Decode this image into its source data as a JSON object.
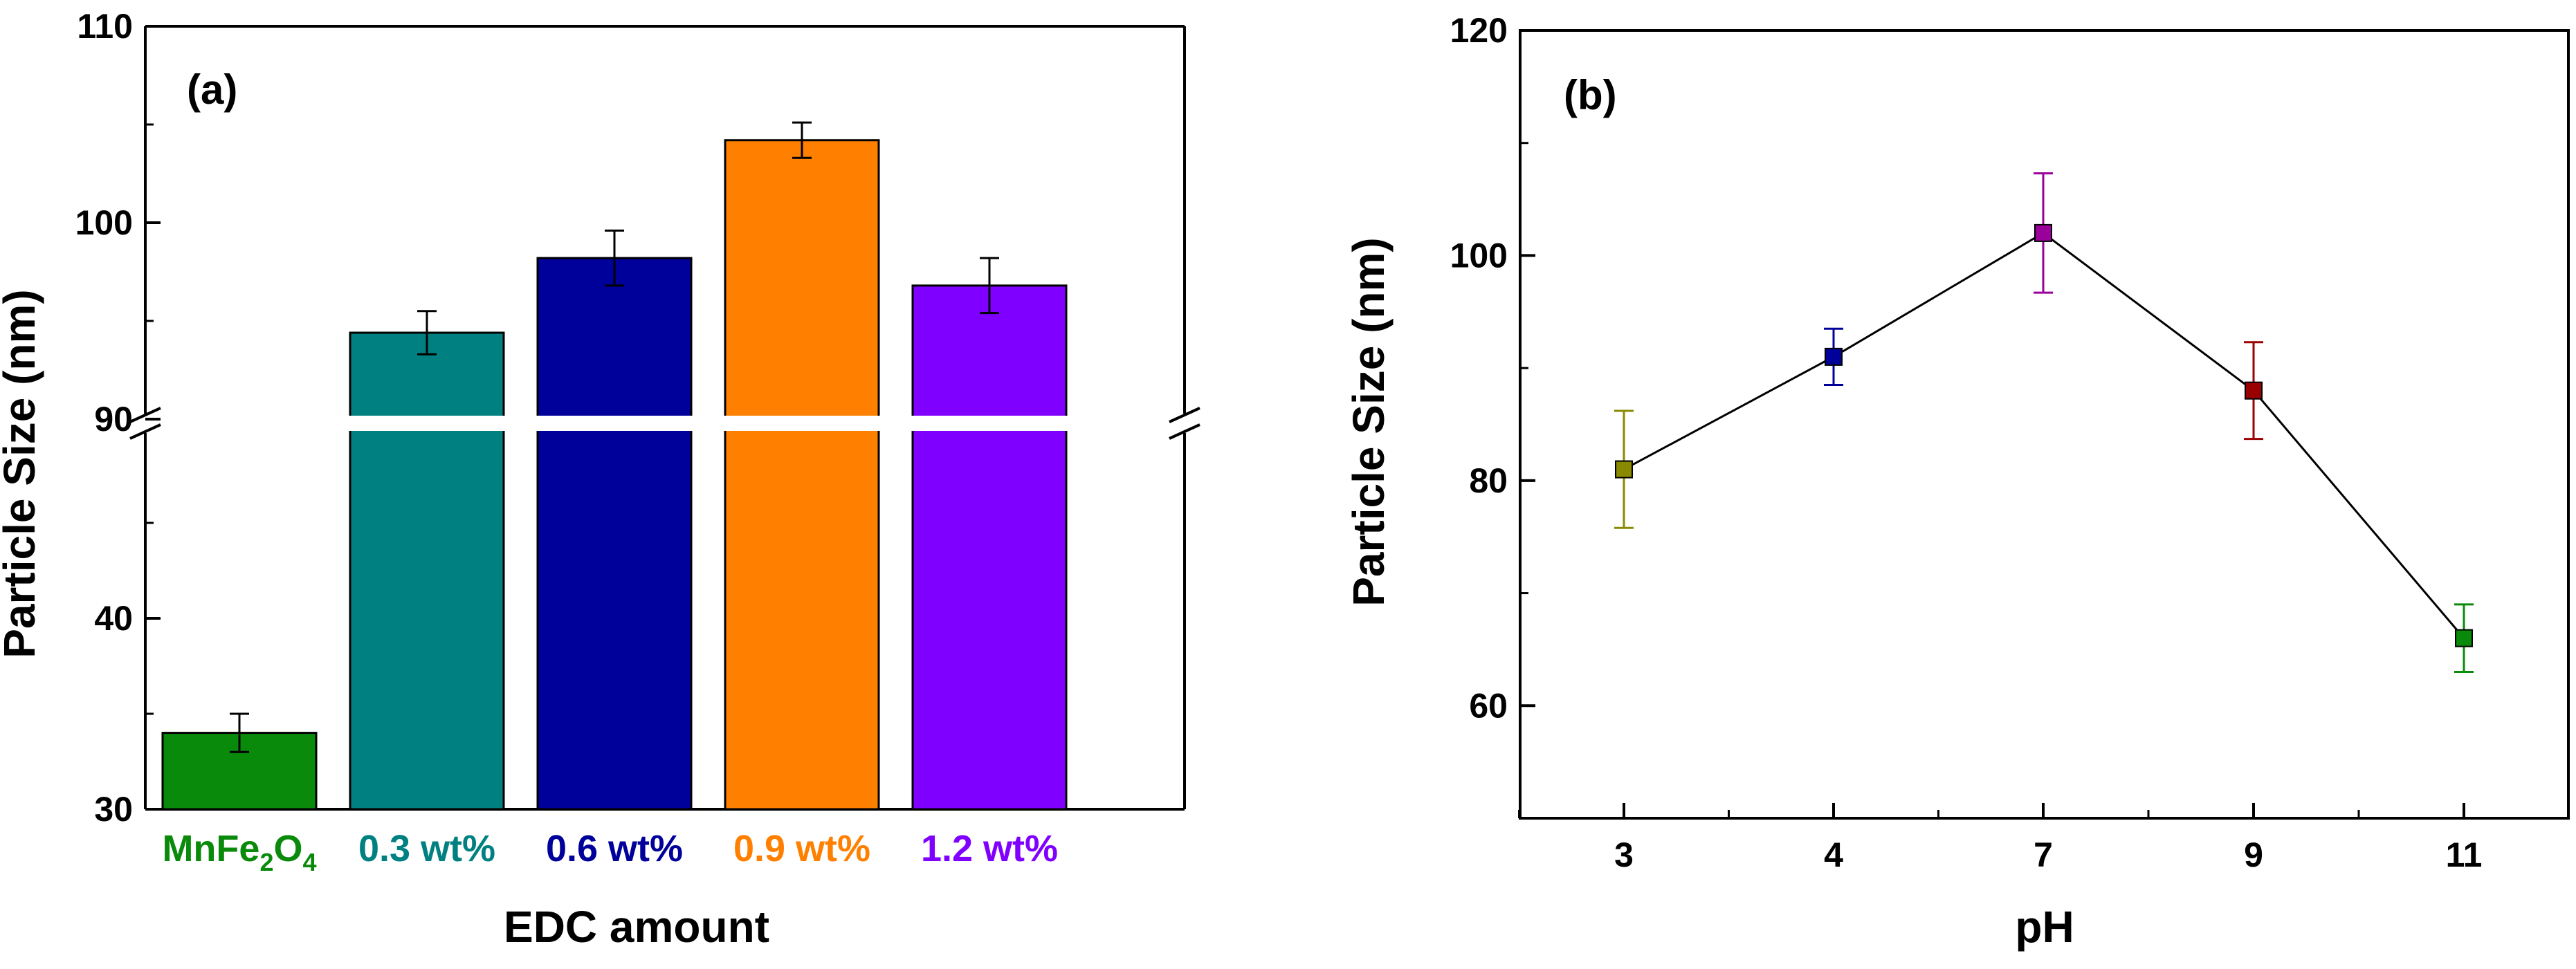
{
  "chart_data": [
    {
      "type": "bar",
      "panel_label": "(a)",
      "xlabel": "EDC amount",
      "ylabel": "Particle Size (nm)",
      "axis_break": {
        "lower_range": [
          30,
          50
        ],
        "upper_range": [
          90,
          110
        ]
      },
      "categories": [
        {
          "base": "MnFe",
          "sub1": "2",
          "mid": "O",
          "sub2": "4",
          "color": "#0a8a0a"
        },
        {
          "base": "0.3 wt%",
          "color": "#008080"
        },
        {
          "base": "0.6 wt%",
          "color": "#00009a"
        },
        {
          "base": "0.9 wt%",
          "color": "#ff8000"
        },
        {
          "base": "1.2 wt%",
          "color": "#8000ff"
        }
      ],
      "values": [
        34,
        94.4,
        98.2,
        104.2,
        96.8
      ],
      "errors": [
        1,
        1.1,
        1.4,
        0.9,
        1.4
      ],
      "y_ticks_lower": [
        {
          "value": 30,
          "label": "30"
        },
        {
          "value": 40,
          "label": "40"
        }
      ],
      "y_ticks_upper": [
        {
          "value": 90,
          "label": "90"
        },
        {
          "value": 100,
          "label": "100"
        },
        {
          "value": 110,
          "label": "110"
        }
      ],
      "grid": false,
      "legend": "none"
    },
    {
      "type": "line",
      "panel_label": "(b)",
      "xlabel": "pH",
      "ylabel": "Particle Size (nm)",
      "categories": [
        "3",
        "4",
        "7",
        "9",
        "11"
      ],
      "series": [
        {
          "name": "Particle Size",
          "values": [
            81,
            91,
            102,
            88,
            66
          ],
          "errors": [
            5.2,
            2.5,
            5.3,
            4.3,
            3.0
          ],
          "point_colors": [
            "#8a8a00",
            "#00009a",
            "#9a009a",
            "#9a0000",
            "#0a8a0a"
          ],
          "line_color": "#000000"
        }
      ],
      "ylim": [
        50,
        120
      ],
      "y_ticks": [
        60,
        80,
        100,
        120
      ],
      "grid": false,
      "legend": "none"
    }
  ]
}
